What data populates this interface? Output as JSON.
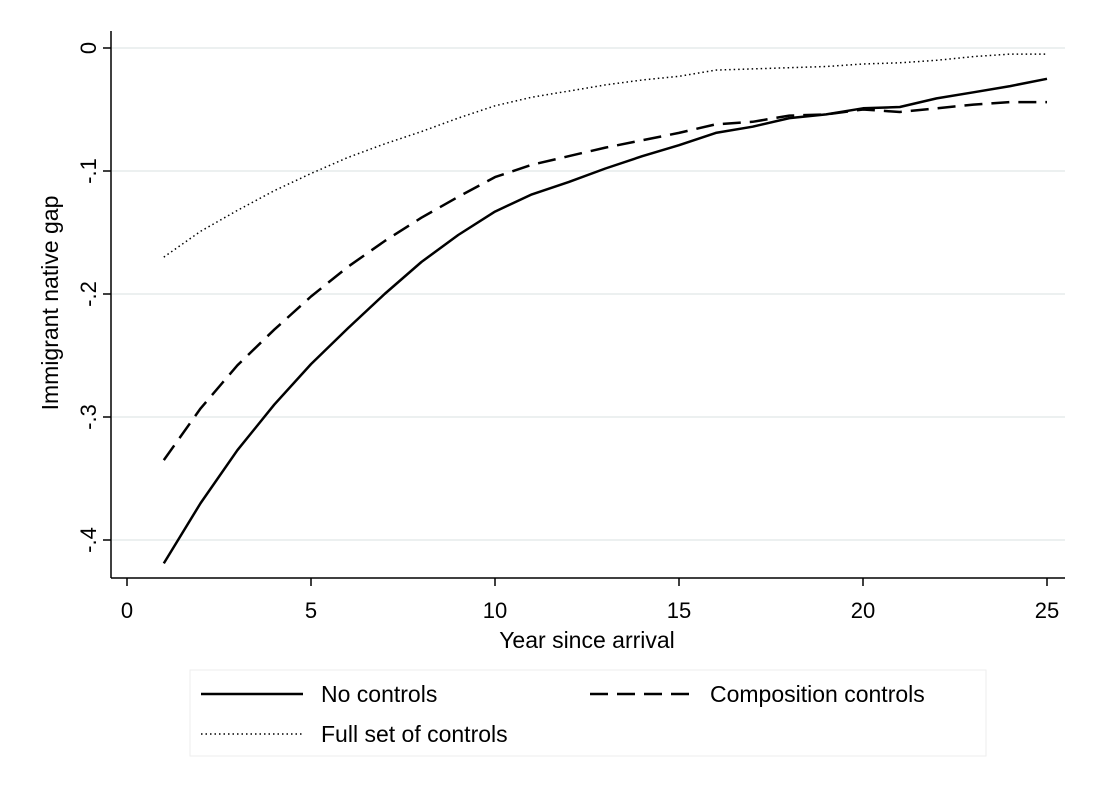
{
  "chart_data": {
    "type": "line",
    "title": "",
    "xlabel": "Year since arrival",
    "ylabel": "Immigrant native gap",
    "xlim": [
      0,
      25
    ],
    "ylim": [
      -0.43,
      0.003
    ],
    "xticks": [
      0,
      5,
      10,
      15,
      20,
      25
    ],
    "xtick_labels": [
      "0",
      "5",
      "10",
      "15",
      "20",
      "25"
    ],
    "yticks": [
      0,
      -0.1,
      -0.2,
      -0.3,
      -0.4
    ],
    "ytick_labels": [
      "0",
      "-.1",
      "-.2",
      "-.3",
      "-.4"
    ],
    "grid": true,
    "legend_position": "bottom",
    "x": [
      1,
      2,
      3,
      4,
      5,
      6,
      7,
      8,
      9,
      10,
      11,
      12,
      13,
      14,
      15,
      16,
      17,
      18,
      19,
      20,
      21,
      22,
      23,
      24,
      25
    ],
    "series": [
      {
        "name": "No controls",
        "style": "solid",
        "color": "#000000",
        "values": [
          -0.419,
          -0.37,
          -0.327,
          -0.29,
          -0.257,
          -0.228,
          -0.2,
          -0.174,
          -0.152,
          -0.133,
          -0.119,
          -0.109,
          -0.098,
          -0.088,
          -0.079,
          -0.069,
          -0.064,
          -0.057,
          -0.054,
          -0.049,
          -0.048,
          -0.041,
          -0.036,
          -0.031,
          -0.025
        ]
      },
      {
        "name": "Composition controls",
        "style": "dashed",
        "color": "#000000",
        "values": [
          -0.335,
          -0.293,
          -0.258,
          -0.229,
          -0.202,
          -0.178,
          -0.157,
          -0.138,
          -0.121,
          -0.105,
          -0.095,
          -0.088,
          -0.081,
          -0.075,
          -0.069,
          -0.062,
          -0.06,
          -0.055,
          -0.054,
          -0.05,
          -0.052,
          -0.049,
          -0.046,
          -0.044,
          -0.044
        ]
      },
      {
        "name": "Full set of controls",
        "style": "dotted",
        "color": "#000000",
        "values": [
          -0.17,
          -0.149,
          -0.132,
          -0.116,
          -0.102,
          -0.089,
          -0.078,
          -0.068,
          -0.057,
          -0.047,
          -0.04,
          -0.035,
          -0.03,
          -0.026,
          -0.023,
          -0.018,
          -0.017,
          -0.016,
          -0.015,
          -0.013,
          -0.012,
          -0.01,
          -0.007,
          -0.005,
          -0.005
        ]
      }
    ]
  }
}
